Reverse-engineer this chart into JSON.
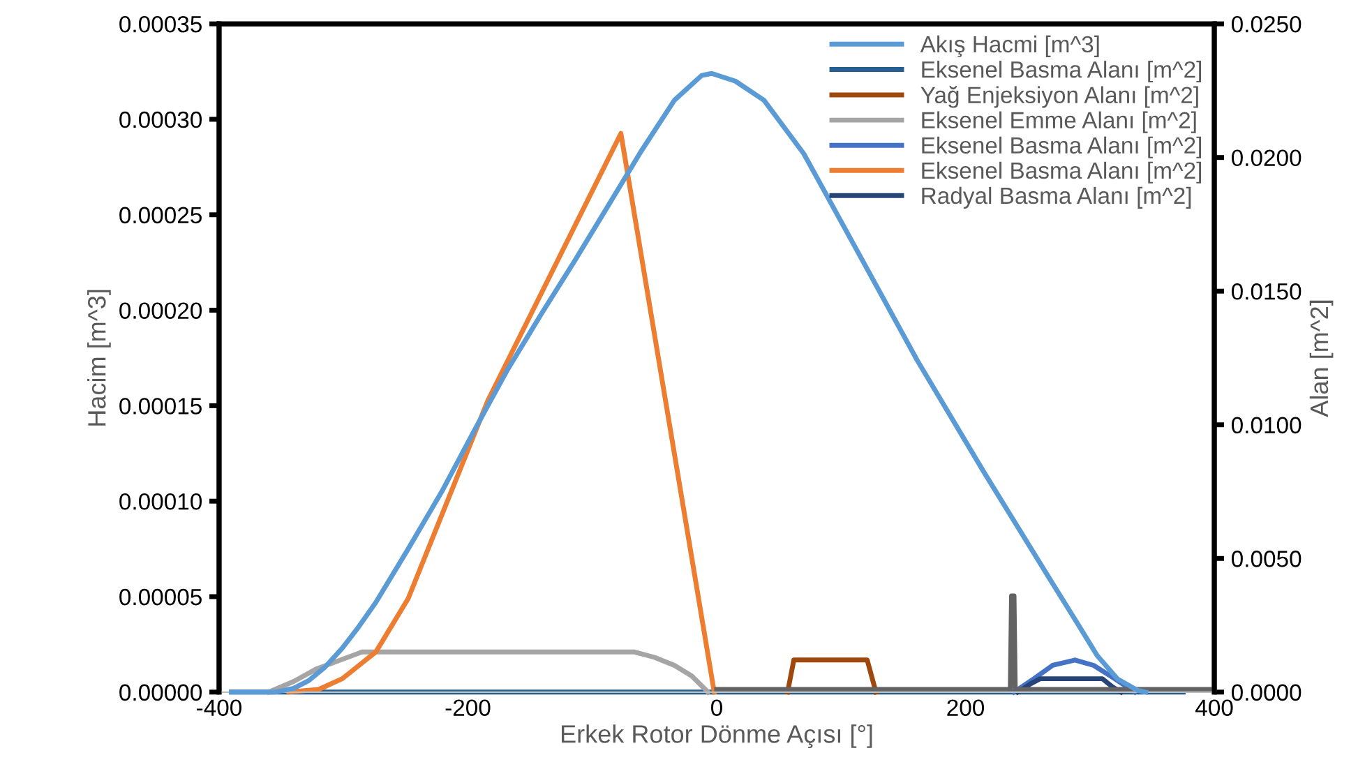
{
  "chart_data": {
    "type": "line",
    "xlabel": "Erkek Rotor Dönme Açısı [°]",
    "ylabel": "Hacim [m^3]",
    "y2label": "Alan [m^2]",
    "xlim": [
      -400,
      400
    ],
    "xticks": [
      -400,
      -200,
      0,
      200,
      400
    ],
    "ylim": [
      0,
      0.00035
    ],
    "yticks": [
      {
        "value": 0,
        "label": "0.00000"
      },
      {
        "value": 5e-05,
        "label": "0.00005"
      },
      {
        "value": 0.0001,
        "label": "0.00010"
      },
      {
        "value": 0.00015,
        "label": "0.00015"
      },
      {
        "value": 0.0002,
        "label": "0.00020"
      },
      {
        "value": 0.00025,
        "label": "0.00025"
      },
      {
        "value": 0.0003,
        "label": "0.00030"
      },
      {
        "value": 0.00035,
        "label": "0.00035"
      }
    ],
    "y2lim": [
      0,
      0.025
    ],
    "y2ticks": [
      {
        "value": 0,
        "label": "0.0000"
      },
      {
        "value": 0.005,
        "label": "0.0050"
      },
      {
        "value": 0.01,
        "label": "0.0100"
      },
      {
        "value": 0.015,
        "label": "0.0150"
      },
      {
        "value": 0.02,
        "label": "0.0200"
      },
      {
        "value": 0.025,
        "label": "0.0250"
      }
    ],
    "grid": false,
    "legend": "top right",
    "marker": "none",
    "line_style": "solid",
    "series": [
      {
        "name": "Akış Hacmi [m^3]",
        "color": "#5b9bd5",
        "x": [
          -390,
          -355,
          -340,
          -328,
          -315,
          -301,
          -288,
          -274,
          -248,
          -221,
          -194,
          -168,
          -141,
          -114,
          -87,
          -61,
          -34,
          -12,
          -4,
          15,
          38,
          70,
          108,
          161,
          215,
          268,
          290,
          306,
          322,
          338,
          345
        ],
        "values": [
          0,
          0,
          2e-06,
          6e-06,
          1.3e-05,
          2.3e-05,
          3.4e-05,
          4.7e-05,
          7.5e-05,
          0.000105,
          0.000138,
          0.000169,
          0.000198,
          0.000226,
          0.000255,
          0.000283,
          0.00031,
          0.000323,
          0.000324,
          0.00032,
          0.00031,
          0.000282,
          0.000237,
          0.000174,
          0.000115,
          5.9e-05,
          3.6e-05,
          1.9e-05,
          7e-06,
          1e-06,
          0
        ]
      },
      {
        "name": "Eksenel Basma Alanı [m^2]",
        "color": "#255e91",
        "axis": "y2",
        "x": [
          -390,
          375
        ],
        "values": [
          0,
          0
        ]
      },
      {
        "name": "Yağ Enjeksiyon Alanı [m^2]",
        "color": "#9e480e",
        "axis": "y2",
        "x": [
          57,
          62,
          121,
          128
        ],
        "values": [
          0,
          0.0012,
          0.0012,
          0
        ]
      },
      {
        "name": "Eksenel Emme Alanı [m^2]",
        "color": "#a5a5a5",
        "axis": "y2",
        "x": [
          -360,
          -340,
          -322,
          -285,
          -66,
          -50,
          -34,
          -20,
          -7
        ],
        "values": [
          0,
          0.0004,
          0.00086,
          0.0015,
          0.0015,
          0.0013,
          0.001,
          0.0006,
          0
        ]
      },
      {
        "name": "Eksenel Basma Alanı [m^2]",
        "color": "#4472c4",
        "axis": "y2",
        "x": [
          239,
          255,
          270,
          288,
          303,
          320,
          336
        ],
        "values": [
          0,
          0.0005,
          0.001,
          0.0012,
          0.001,
          0.0005,
          0
        ]
      },
      {
        "name": "Eksenel Basma Alanı [m^2]",
        "color": "#ed7d31",
        "axis": "y2",
        "x": [
          -344,
          -320,
          -301,
          -274,
          -248,
          -184,
          -77,
          -2
        ],
        "values": [
          0,
          0.0001,
          0.0005,
          0.0015,
          0.0035,
          0.0109,
          0.0209,
          0
        ]
      },
      {
        "name": "Radyal Basma Alanı [m^2]",
        "color": "#264478",
        "axis": "y2",
        "x": [
          242,
          252,
          260,
          310,
          318,
          325
        ],
        "values": [
          0,
          0.0003,
          0.0005,
          0.0005,
          0.0002,
          0
        ]
      },
      {
        "color": "#636363",
        "axis": "y2",
        "x": [
          0,
          236,
          237,
          239,
          240,
          400
        ],
        "values": [
          0.0001,
          0.0001,
          0.0036,
          0.0036,
          0.0001,
          0.0001
        ]
      }
    ]
  }
}
